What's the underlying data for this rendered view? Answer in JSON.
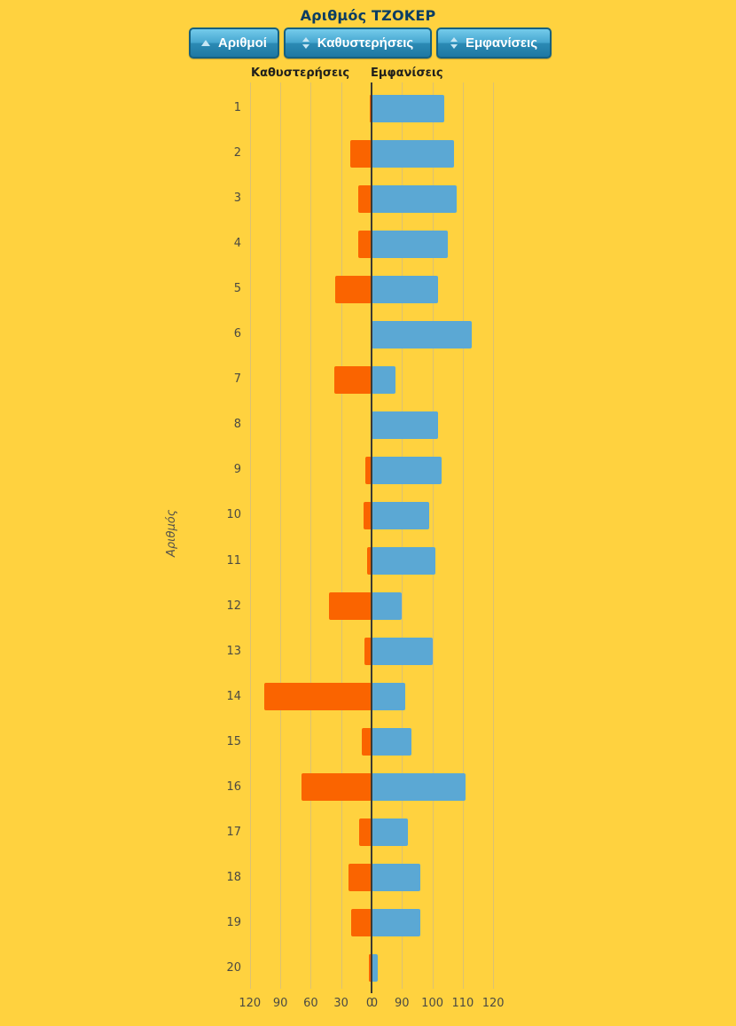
{
  "title": "Αριθμός ΤΖΟΚΕΡ",
  "buttons": [
    {
      "label": "Αριθμοί",
      "sort_state": "ascending"
    },
    {
      "label": "Καθυστερήσεις",
      "sort_state": "unsorted"
    },
    {
      "label": "Εμφανίσεις",
      "sort_state": "unsorted"
    }
  ],
  "axis_headers": {
    "left": "Καθυστερήσεις",
    "right": "Εμφανίσεις"
  },
  "y_axis_title": "Αριθμός",
  "colors": {
    "background": "#FFD23F",
    "delay_bar": "#FA6400",
    "appearance_bar": "#5BA8D4",
    "gridline": "#DCC172",
    "zero_line": "#3E3A31",
    "title_text": "#0A3D63",
    "button_top": "#74CBEB",
    "button_bottom": "#1E78A3",
    "button_border": "#16607F"
  },
  "chart_data": {
    "type": "bar",
    "orientation": "horizontal-diverging",
    "title": "Αριθμός ΤΖΟΚΕΡ",
    "ylabel": "Αριθμός",
    "grid": true,
    "categories": [
      "1",
      "2",
      "3",
      "4",
      "5",
      "6",
      "7",
      "8",
      "9",
      "10",
      "11",
      "12",
      "13",
      "14",
      "15",
      "16",
      "17",
      "18",
      "19",
      "20"
    ],
    "series": [
      {
        "name": "Καθυστερήσεις",
        "direction": "left",
        "color": "#FA6400",
        "values": [
          2,
          21,
          13,
          13,
          36,
          0,
          37,
          0,
          6,
          8,
          4,
          42,
          7,
          106,
          10,
          69,
          12,
          23,
          20,
          3
        ]
      },
      {
        "name": "Εμφανίσεις",
        "direction": "right",
        "color": "#5BA8D4",
        "values": [
          104,
          107,
          108,
          105,
          102,
          113,
          88,
          102,
          103,
          99,
          101,
          90,
          100,
          91,
          93,
          111,
          92,
          96,
          96,
          82
        ]
      }
    ],
    "x_axis": {
      "left_tick_labels": [
        "120",
        "90",
        "60",
        "30",
        "0"
      ],
      "right_tick_labels": [
        "0",
        "90",
        "100",
        "110",
        "120"
      ],
      "left_units_per_step": 30,
      "right_axis_baseline_value": 80,
      "right_units_per_step": 10,
      "left_range": [
        0,
        120
      ],
      "right_range": [
        80,
        120
      ]
    }
  }
}
